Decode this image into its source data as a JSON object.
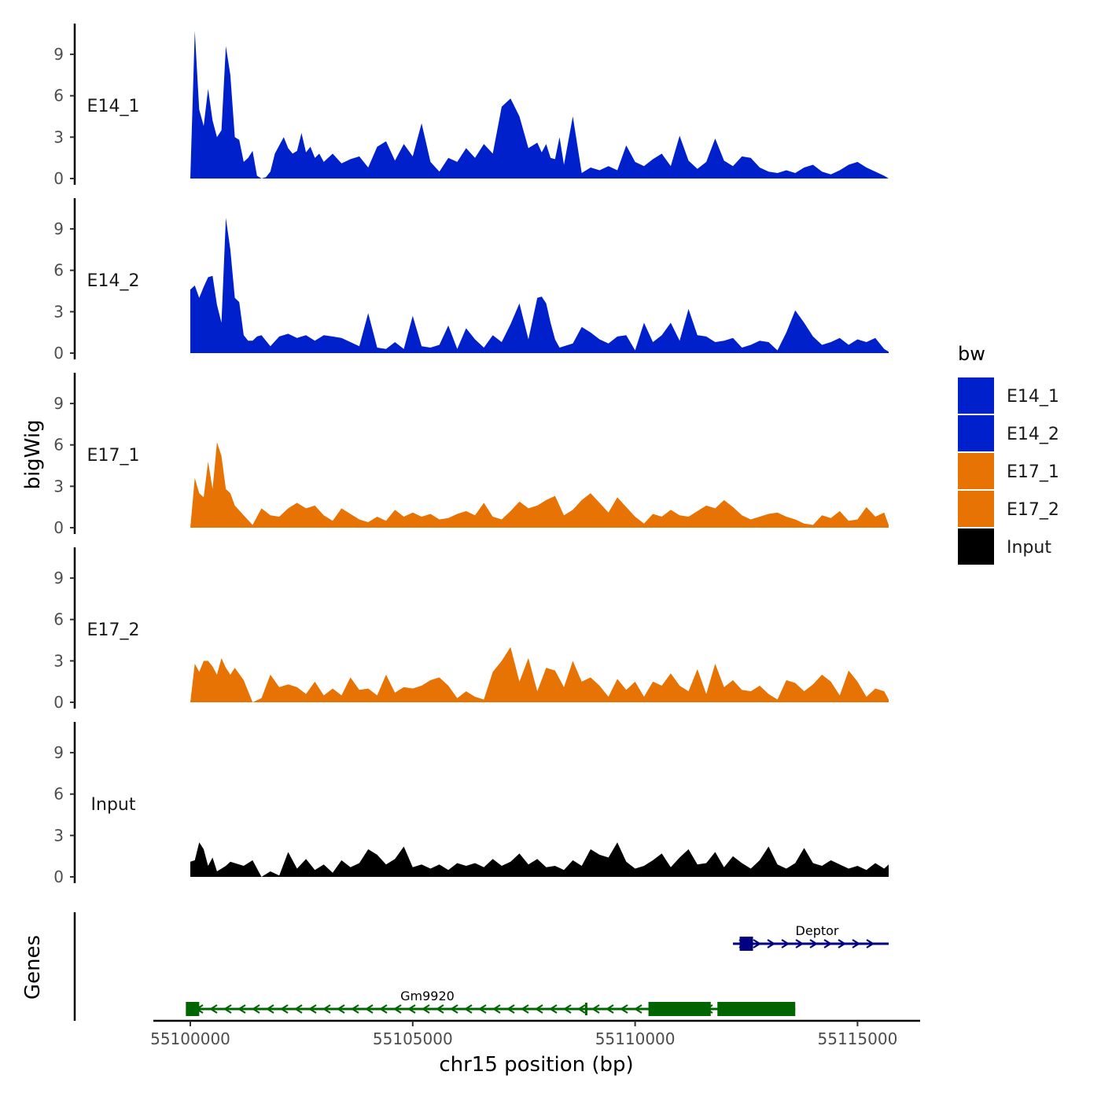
{
  "chart_data": {
    "type": "area",
    "xlabel": "chr15 position (bp)",
    "ylabel": "bigWig",
    "genes_label": "Genes",
    "xlim": [
      55100000,
      55115700
    ],
    "x_ticks": [
      55100000,
      55105000,
      55110000,
      55115000
    ],
    "x_tick_labels": [
      "55100000",
      "55105000",
      "55110000",
      "55115000"
    ],
    "ylim": [
      0,
      11
    ],
    "y_ticks": [
      0,
      3,
      6,
      9
    ],
    "y_tick_labels": [
      "0",
      "3",
      "6",
      "9"
    ],
    "legend": {
      "title": "bw",
      "position": "right",
      "entries": [
        {
          "label": "E14_1",
          "color": "#0020CC"
        },
        {
          "label": "E14_2",
          "color": "#0020CC"
        },
        {
          "label": "E17_1",
          "color": "#E87305"
        },
        {
          "label": "E17_2",
          "color": "#E87305"
        },
        {
          "label": "Input",
          "color": "#000000"
        }
      ]
    },
    "series": [
      {
        "name": "E14_1",
        "color": "#0020CC",
        "x": [
          55100000,
          55100100,
          55100200,
          55100300,
          55100400,
          55100500,
          55100600,
          55100700,
          55100800,
          55100900,
          55101000,
          55101100,
          55101200,
          55101300,
          55101400,
          55101500,
          55101600,
          55101700,
          55101800,
          55101900,
          55102000,
          55102100,
          55102200,
          55102300,
          55102400,
          55102500,
          55102600,
          55102700,
          55102800,
          55102900,
          55103000,
          55103200,
          55103400,
          55103600,
          55103800,
          55104000,
          55104200,
          55104400,
          55104600,
          55104800,
          55105000,
          55105200,
          55105400,
          55105600,
          55105800,
          55106000,
          55106200,
          55106400,
          55106600,
          55106800,
          55107000,
          55107200,
          55107400,
          55107600,
          55107800,
          55107900,
          55108000,
          55108100,
          55108200,
          55108300,
          55108400,
          55108600,
          55108800,
          55109000,
          55109200,
          55109400,
          55109600,
          55109800,
          55110000,
          55110200,
          55110400,
          55110600,
          55110800,
          55111000,
          55111200,
          55111400,
          55111600,
          55111800,
          55112000,
          55112200,
          55112400,
          55112600,
          55112800,
          55113000,
          55113200,
          55113400,
          55113600,
          55113800,
          55114000,
          55114200,
          55114400,
          55114600,
          55114800,
          55115000,
          55115200,
          55115400,
          55115600,
          55115700
        ],
        "values": [
          0,
          10.7,
          5,
          3.8,
          6.5,
          4.2,
          3,
          3.5,
          9.6,
          7.5,
          3,
          2.8,
          1.2,
          1.5,
          2,
          0.2,
          0,
          0.1,
          0.5,
          1.8,
          2.4,
          3,
          2.2,
          1.8,
          2,
          3.3,
          1.9,
          2.3,
          1.5,
          1.8,
          1.2,
          1.8,
          1.1,
          1.4,
          1.6,
          0.8,
          2.3,
          2.7,
          1.3,
          2.5,
          1.6,
          4,
          1.2,
          0.5,
          1.5,
          1.2,
          2.2,
          1.5,
          2.5,
          1.8,
          5.2,
          5.8,
          4.5,
          2.2,
          2.6,
          1.9,
          2.5,
          1.5,
          1.4,
          3,
          1,
          4.5,
          0.4,
          0.8,
          0.6,
          0.9,
          0.6,
          2.4,
          1.2,
          0.9,
          1.4,
          1.8,
          0.9,
          3.1,
          1.3,
          0.7,
          1.2,
          2.9,
          1.3,
          0.9,
          1.6,
          1.5,
          0.8,
          0.5,
          0.4,
          0.6,
          0.4,
          0.8,
          1,
          0.5,
          0.3,
          0.6,
          1,
          1.2,
          0.8,
          0.5,
          0.2,
          0
        ]
      },
      {
        "name": "E14_2",
        "color": "#0020CC",
        "x": [
          55100000,
          55100100,
          55100200,
          55100300,
          55100400,
          55100500,
          55100600,
          55100700,
          55100800,
          55100900,
          55101000,
          55101100,
          55101200,
          55101300,
          55101400,
          55101500,
          55101600,
          55101800,
          55102000,
          55102200,
          55102400,
          55102600,
          55102800,
          55103000,
          55103200,
          55103400,
          55103600,
          55103800,
          55104000,
          55104200,
          55104400,
          55104600,
          55104800,
          55105000,
          55105200,
          55105400,
          55105600,
          55105800,
          55106000,
          55106200,
          55106400,
          55106600,
          55106800,
          55107000,
          55107200,
          55107400,
          55107600,
          55107800,
          55107900,
          55108000,
          55108100,
          55108200,
          55108300,
          55108400,
          55108600,
          55108800,
          55109000,
          55109200,
          55109400,
          55109600,
          55109800,
          55110000,
          55110200,
          55110400,
          55110600,
          55110800,
          55111000,
          55111200,
          55111400,
          55111600,
          55111800,
          55112000,
          55112200,
          55112400,
          55112600,
          55112800,
          55113000,
          55113200,
          55113400,
          55113600,
          55113800,
          55114000,
          55114200,
          55114400,
          55114600,
          55114800,
          55115000,
          55115200,
          55115400,
          55115600,
          55115700
        ],
        "values": [
          4.6,
          4.9,
          4,
          4.8,
          5.5,
          5.6,
          3.5,
          2.2,
          9.8,
          7.5,
          4,
          3.7,
          1.3,
          0.9,
          0.9,
          1.2,
          1.3,
          0.5,
          1.2,
          1.4,
          1.1,
          1.3,
          0.9,
          1.3,
          1.2,
          1.1,
          0.8,
          0.5,
          2.9,
          0.4,
          0.3,
          0.8,
          0.3,
          2.7,
          0.5,
          0.4,
          0.6,
          2,
          0.3,
          1.8,
          1,
          0.4,
          1.3,
          0.8,
          2.1,
          3.6,
          1,
          4,
          4.1,
          3.6,
          2.2,
          1,
          0.4,
          0.5,
          0.7,
          1.9,
          1.5,
          1,
          0.7,
          1.2,
          1.3,
          0.2,
          2.2,
          0.8,
          1.3,
          2.2,
          0.9,
          3.2,
          1.3,
          1.2,
          0.8,
          0.9,
          1.1,
          0.4,
          0.6,
          0.9,
          0.8,
          0.2,
          1.5,
          3.1,
          2.2,
          1.2,
          0.6,
          0.8,
          1.1,
          0.6,
          1,
          0.8,
          1.1,
          0.3,
          0.1
        ]
      },
      {
        "name": "E17_1",
        "color": "#E87305",
        "x": [
          55100000,
          55100100,
          55100200,
          55100300,
          55100400,
          55100500,
          55100600,
          55100700,
          55100800,
          55100900,
          55101000,
          55101200,
          55101400,
          55101600,
          55101800,
          55102000,
          55102200,
          55102400,
          55102600,
          55102800,
          55103000,
          55103200,
          55103400,
          55103600,
          55103800,
          55104000,
          55104200,
          55104400,
          55104600,
          55104800,
          55105000,
          55105200,
          55105400,
          55105600,
          55105800,
          55106000,
          55106200,
          55106400,
          55106600,
          55106800,
          55107000,
          55107200,
          55107400,
          55107600,
          55107800,
          55108000,
          55108200,
          55108400,
          55108600,
          55108800,
          55109000,
          55109200,
          55109400,
          55109600,
          55109800,
          55110000,
          55110200,
          55110400,
          55110600,
          55110800,
          55111000,
          55111200,
          55111400,
          55111600,
          55111800,
          55112000,
          55112200,
          55112400,
          55112600,
          55112800,
          55113000,
          55113200,
          55113400,
          55113600,
          55113800,
          55114000,
          55114200,
          55114400,
          55114600,
          55114800,
          55115000,
          55115200,
          55115400,
          55115600,
          55115700
        ],
        "values": [
          0,
          3.6,
          2.5,
          2.2,
          4.8,
          2.8,
          6.2,
          5.2,
          2.8,
          2.5,
          1.6,
          0.9,
          0.2,
          1.4,
          0.9,
          0.8,
          1.4,
          1.8,
          1.4,
          1.6,
          0.9,
          0.5,
          1.4,
          1,
          0.6,
          0.4,
          0.8,
          0.5,
          1.3,
          0.8,
          1.1,
          0.8,
          1,
          0.6,
          0.7,
          1,
          1.2,
          0.9,
          1.8,
          0.8,
          0.6,
          1.2,
          1.9,
          1.4,
          1.6,
          2,
          2.3,
          0.9,
          1.3,
          2,
          2.5,
          1.8,
          1.1,
          2.2,
          1.5,
          0.8,
          0.3,
          1,
          0.8,
          1.3,
          0.9,
          0.8,
          1.2,
          1.6,
          1.4,
          2,
          1.5,
          0.9,
          0.6,
          0.8,
          1,
          1.1,
          0.8,
          0.6,
          0.3,
          0.2,
          0.9,
          0.7,
          1.2,
          0.5,
          0.6,
          1.5,
          0.8,
          1.1,
          0.2
        ]
      },
      {
        "name": "E17_2",
        "color": "#E87305",
        "x": [
          55100000,
          55100100,
          55100200,
          55100300,
          55100400,
          55100500,
          55100600,
          55100700,
          55100800,
          55100900,
          55101000,
          55101200,
          55101400,
          55101600,
          55101800,
          55102000,
          55102200,
          55102400,
          55102600,
          55102800,
          55103000,
          55103200,
          55103400,
          55103600,
          55103800,
          55104000,
          55104200,
          55104400,
          55104600,
          55104800,
          55105000,
          55105200,
          55105400,
          55105600,
          55105800,
          55106000,
          55106200,
          55106400,
          55106600,
          55106800,
          55107000,
          55107200,
          55107400,
          55107600,
          55107800,
          55108000,
          55108200,
          55108400,
          55108600,
          55108800,
          55109000,
          55109200,
          55109400,
          55109600,
          55109800,
          55110000,
          55110200,
          55110400,
          55110600,
          55110800,
          55111000,
          55111200,
          55111400,
          55111600,
          55111800,
          55112000,
          55112200,
          55112400,
          55112600,
          55112800,
          55113000,
          55113200,
          55113400,
          55113600,
          55113800,
          55114000,
          55114200,
          55114400,
          55114600,
          55114800,
          55115000,
          55115200,
          55115400,
          55115600,
          55115700
        ],
        "values": [
          0,
          2.8,
          2.2,
          3,
          3,
          2.6,
          2,
          3.2,
          2.5,
          2,
          2.5,
          1.6,
          0,
          0.3,
          2,
          1.1,
          1.3,
          1.1,
          0.6,
          1.5,
          0.5,
          1,
          0.5,
          1.8,
          0.9,
          1,
          0.5,
          2,
          0.7,
          1.1,
          1,
          1.2,
          1.6,
          1.8,
          1.2,
          0.3,
          0.8,
          0.4,
          0.2,
          2.2,
          3,
          4,
          1.5,
          3.2,
          0.8,
          2.5,
          2.3,
          1.1,
          3,
          1.5,
          1.8,
          1.2,
          0.4,
          1.7,
          0.9,
          1.5,
          0.4,
          1.5,
          1.2,
          2.1,
          1.2,
          0.8,
          2.4,
          0.6,
          2.8,
          1.1,
          1.6,
          0.9,
          0.8,
          1.2,
          0.6,
          0.2,
          1.6,
          1.4,
          0.8,
          1.3,
          2,
          1.5,
          0.5,
          2.3,
          1.5,
          0.4,
          1,
          0.8,
          0.2
        ]
      },
      {
        "name": "Input",
        "color": "#000000",
        "x": [
          55100000,
          55100100,
          55100200,
          55100300,
          55100400,
          55100500,
          55100600,
          55100700,
          55100800,
          55100900,
          55101000,
          55101200,
          55101400,
          55101600,
          55101800,
          55102000,
          55102200,
          55102400,
          55102600,
          55102800,
          55103000,
          55103200,
          55103400,
          55103600,
          55103800,
          55104000,
          55104200,
          55104400,
          55104600,
          55104800,
          55105000,
          55105200,
          55105400,
          55105600,
          55105800,
          55106000,
          55106200,
          55106400,
          55106600,
          55106800,
          55107000,
          55107200,
          55107400,
          55107600,
          55107800,
          55108000,
          55108200,
          55108400,
          55108600,
          55108800,
          55109000,
          55109200,
          55109400,
          55109600,
          55109800,
          55110000,
          55110200,
          55110400,
          55110600,
          55110800,
          55111000,
          55111200,
          55111400,
          55111600,
          55111800,
          55112000,
          55112200,
          55112400,
          55112600,
          55112800,
          55113000,
          55113200,
          55113400,
          55113600,
          55113800,
          55114000,
          55114200,
          55114400,
          55114600,
          55114800,
          55115000,
          55115200,
          55115400,
          55115600,
          55115700
        ],
        "values": [
          1.1,
          1.2,
          2.5,
          2,
          0.8,
          1.4,
          0.4,
          0.6,
          0.8,
          1.1,
          1,
          0.8,
          1.2,
          0,
          0.4,
          0.1,
          1.8,
          0.6,
          1.3,
          0.5,
          0.9,
          0.3,
          1.2,
          0.7,
          1,
          2,
          1.6,
          0.9,
          1.3,
          2.2,
          0.7,
          0.9,
          0.6,
          0.9,
          0.5,
          1,
          0.8,
          1,
          0.7,
          1.3,
          0.8,
          1.1,
          1.7,
          0.9,
          1.3,
          0.7,
          0.8,
          0.5,
          1.2,
          0.8,
          2,
          1.6,
          1.4,
          2.5,
          1.1,
          0.6,
          0.8,
          1.2,
          1.7,
          0.7,
          1.4,
          2,
          0.9,
          1,
          1.8,
          0.7,
          1.5,
          1,
          0.6,
          1.2,
          2.2,
          0.9,
          0.6,
          1,
          2.1,
          1,
          0.8,
          1.2,
          0.9,
          0.6,
          0.8,
          0.5,
          1,
          0.6,
          0.9
        ]
      }
    ],
    "genes": [
      {
        "name": "Gm9920",
        "strand": "-",
        "color": "#006400",
        "start": 55100000,
        "end": 55113600,
        "exons": [
          [
            55099900,
            55100200
          ],
          [
            55110300,
            55111700
          ],
          [
            55111850,
            55113600
          ]
        ],
        "marks": [
          55108900
        ]
      },
      {
        "name": "Deptor",
        "strand": "+",
        "color": "#000080",
        "start": 55112200,
        "end": 55115700,
        "exons": [
          [
            55112350,
            55112650
          ]
        ]
      }
    ]
  }
}
